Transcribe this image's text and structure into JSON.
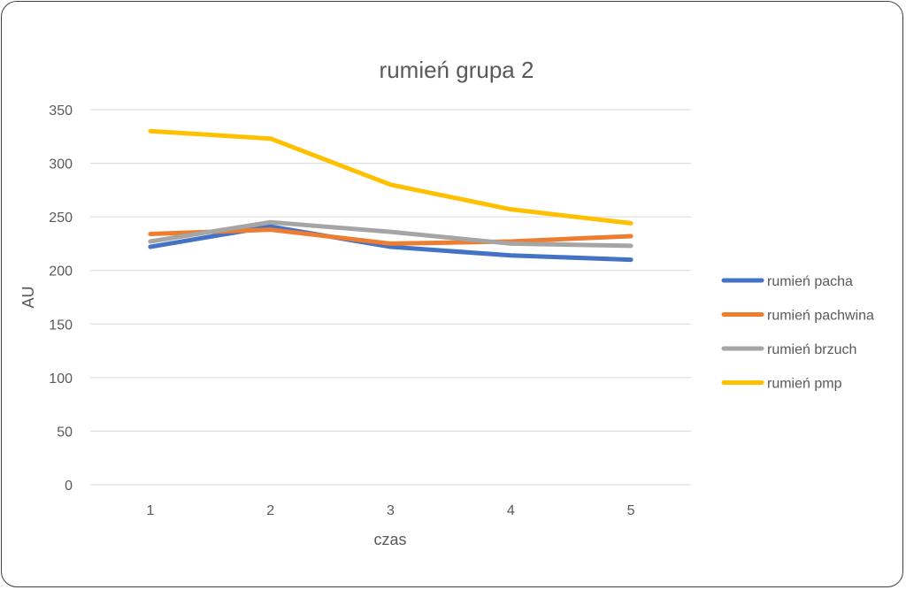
{
  "chart_data": {
    "type": "line",
    "title": "rumień grupa 2",
    "xlabel": "czas",
    "ylabel": "AU",
    "categories": [
      "1",
      "2",
      "3",
      "4",
      "5"
    ],
    "ylim": [
      0,
      350
    ],
    "yticks": [
      0,
      50,
      100,
      150,
      200,
      250,
      300,
      350
    ],
    "grid": true,
    "legend_position": "right",
    "series": [
      {
        "name": "rumień pacha",
        "color": "#4472C4",
        "values": [
          222,
          241,
          222,
          214,
          210
        ]
      },
      {
        "name": "rumień pachwina",
        "color": "#ED7D31",
        "values": [
          234,
          238,
          225,
          227,
          232
        ]
      },
      {
        "name": "rumień brzuch",
        "color": "#A5A5A5",
        "values": [
          227,
          245,
          236,
          225,
          223
        ]
      },
      {
        "name": "rumień pmp",
        "color": "#FFC000",
        "values": [
          330,
          323,
          280,
          257,
          244
        ]
      }
    ]
  }
}
